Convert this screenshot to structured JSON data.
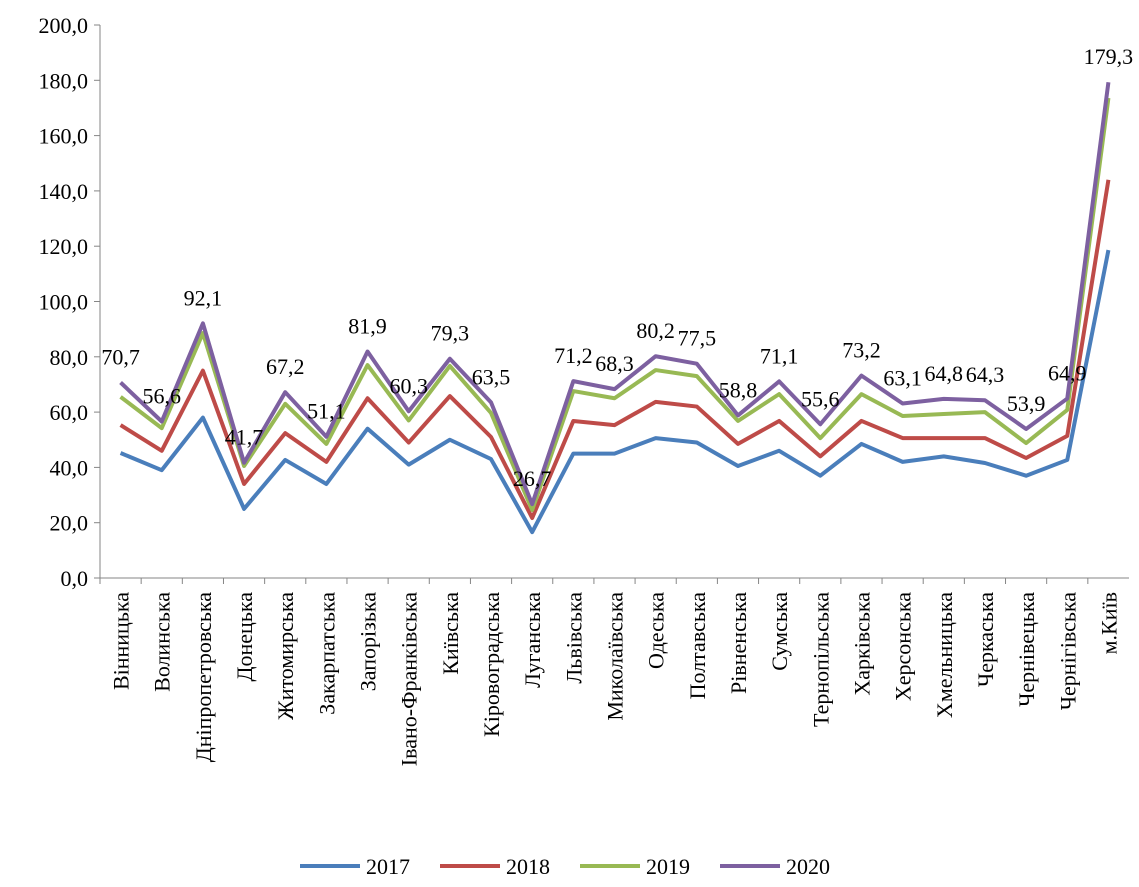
{
  "chart_data": {
    "type": "line",
    "categories": [
      "Вінницька",
      "Волинська",
      "Дніпропетровська",
      "Донецька",
      "Житомирська",
      "Закарпатська",
      "Запорізька",
      "Івано-Франківська",
      "Київська",
      "Кіровоградська",
      "Луганська",
      "Львівська",
      "Миколаївська",
      "Одеська",
      "Полтавська",
      "Рівненська",
      "Сумська",
      "Тернопільська",
      "Харківська",
      "Херсонська",
      "Хмельницька",
      "Черкаська",
      "Чернівецька",
      "Чернігівська",
      "м.Київ"
    ],
    "series": [
      {
        "name": "2017",
        "color": "#4a7ebb",
        "values": [
          45.2,
          39,
          58,
          25,
          42.7,
          34,
          54,
          41,
          50,
          43,
          16.6,
          45,
          45,
          50.6,
          49,
          40.5,
          46,
          37,
          48.5,
          42,
          44,
          41.6,
          37,
          42.7,
          118.6
        ]
      },
      {
        "name": "2018",
        "color": "#be4b48",
        "values": [
          55.3,
          46,
          75,
          34,
          52.4,
          42,
          65,
          49,
          65.8,
          51,
          21.7,
          56.8,
          55.3,
          63.7,
          62,
          48.5,
          56.8,
          44,
          56.8,
          50.6,
          50.6,
          50.6,
          43.4,
          51.4,
          144
        ]
      },
      {
        "name": "2019",
        "color": "#98b954",
        "values": [
          65.5,
          54.2,
          88.6,
          40.5,
          63,
          48.5,
          77,
          57,
          76.7,
          59.7,
          24.6,
          67.6,
          65,
          75.2,
          73,
          56.8,
          66.5,
          50.6,
          66.5,
          58.6,
          59.3,
          60,
          48.8,
          60.8,
          173.6
        ]
      },
      {
        "name": "2020",
        "color": "#7d60a0",
        "values": [
          70.7,
          56.6,
          92.1,
          41.7,
          67.2,
          51.1,
          81.9,
          60.3,
          79.3,
          63.5,
          26.7,
          71.2,
          68.3,
          80.2,
          77.5,
          58.8,
          71.1,
          55.6,
          73.2,
          63.1,
          64.8,
          64.3,
          53.9,
          64.9,
          179.3
        ],
        "value_labels": [
          "70,7",
          "56,6",
          "92,1",
          "41,7",
          "67,2",
          "51,1",
          "81,9",
          "60,3",
          "79,3",
          "63,5",
          "26,7",
          "71,2",
          "68,3",
          "80,2",
          "77,5",
          "58,8",
          "71,1",
          "55,6",
          "73,2",
          "63,1",
          "64,8",
          "64,3",
          "53,9",
          "64,9",
          "179,3"
        ]
      }
    ],
    "ylim": [
      0,
      200
    ],
    "yticks": [
      {
        "value": 0,
        "label": "0,0"
      },
      {
        "value": 20,
        "label": "20,0"
      },
      {
        "value": 40,
        "label": "40,0"
      },
      {
        "value": 60,
        "label": "60,0"
      },
      {
        "value": 80,
        "label": "80,0"
      },
      {
        "value": 100,
        "label": "100,0"
      },
      {
        "value": 120,
        "label": "120,0"
      },
      {
        "value": 140,
        "label": "140,0"
      },
      {
        "value": 160,
        "label": "160,0"
      },
      {
        "value": 180,
        "label": "180,0"
      },
      {
        "value": 200,
        "label": "200,0"
      }
    ],
    "legend": "bottom"
  }
}
